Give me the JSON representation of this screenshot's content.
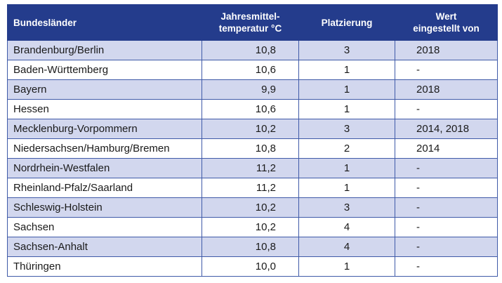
{
  "headers": {
    "state": "Bundesländer",
    "temp_line1": "Jahresmittel-",
    "temp_line2": "temperatur °C",
    "rank": "Platzierung",
    "set_line1": "Wert",
    "set_line2": "eingestellt von"
  },
  "rows": [
    {
      "state": "Brandenburg/Berlin",
      "temp": "10,8",
      "rank": "3",
      "set": "2018"
    },
    {
      "state": "Baden-Württemberg",
      "temp": "10,6",
      "rank": "1",
      "set": "-"
    },
    {
      "state": "Bayern",
      "temp": "9,9",
      "rank": "1",
      "set": "2018"
    },
    {
      "state": "Hessen",
      "temp": "10,6",
      "rank": "1",
      "set": "-"
    },
    {
      "state": "Mecklenburg-Vorpommern",
      "temp": "10,2",
      "rank": "3",
      "set": "2014, 2018"
    },
    {
      "state": "Niedersachsen/Hamburg/Bremen",
      "temp": "10,8",
      "rank": "2",
      "set": "2014"
    },
    {
      "state": "Nordrhein-Westfalen",
      "temp": "11,2",
      "rank": "1",
      "set": "-"
    },
    {
      "state": "Rheinland-Pfalz/Saarland",
      "temp": "11,2",
      "rank": "1",
      "set": "-"
    },
    {
      "state": "Schleswig-Holstein",
      "temp": "10,2",
      "rank": "3",
      "set": "-"
    },
    {
      "state": "Sachsen",
      "temp": "10,2",
      "rank": "4",
      "set": "-"
    },
    {
      "state": "Sachsen-Anhalt",
      "temp": "10,8",
      "rank": "4",
      "set": "-"
    },
    {
      "state": "Thüringen",
      "temp": "10,0",
      "rank": "1",
      "set": "-"
    }
  ],
  "colors": {
    "header_bg": "#243c8c",
    "row_alt_bg": "#d2d7ee",
    "border": "#3f5aa8"
  }
}
